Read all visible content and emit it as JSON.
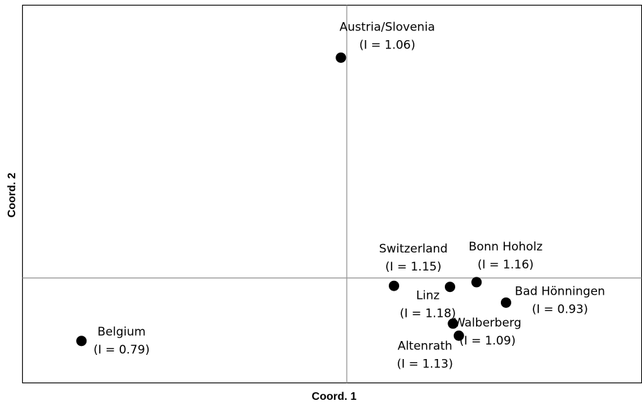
{
  "chart_data": {
    "type": "scatter",
    "title": "",
    "xlabel": "Coord. 1",
    "ylabel": "Coord. 2",
    "xlim": [
      -0.55,
      0.5
    ],
    "ylim": [
      -0.2,
      0.52
    ],
    "grid": false,
    "points": [
      {
        "name": "Austria/Slovenia",
        "note": "(I = 1.06)",
        "x": -0.01,
        "y": 0.42
      },
      {
        "name": "Belgium",
        "note": "(I = 0.79)",
        "x": -0.45,
        "y": -0.12
      },
      {
        "name": "Switzerland",
        "note": "(I = 1.15)",
        "x": 0.08,
        "y": -0.015
      },
      {
        "name": "Linz",
        "note": "(I = 1.18)",
        "x": 0.175,
        "y": -0.017
      },
      {
        "name": "Bonn Hoholz",
        "note": "(I = 1.16)",
        "x": 0.22,
        "y": -0.008
      },
      {
        "name": "Bad Hönningen",
        "note": "(I = 0.93)",
        "x": 0.27,
        "y": -0.047
      },
      {
        "name": "Walberberg",
        "note": "(I = 1.09)",
        "x": 0.18,
        "y": -0.087
      },
      {
        "name": "Altenrath",
        "note": "(I = 1.13)",
        "x": 0.19,
        "y": -0.11
      }
    ]
  }
}
